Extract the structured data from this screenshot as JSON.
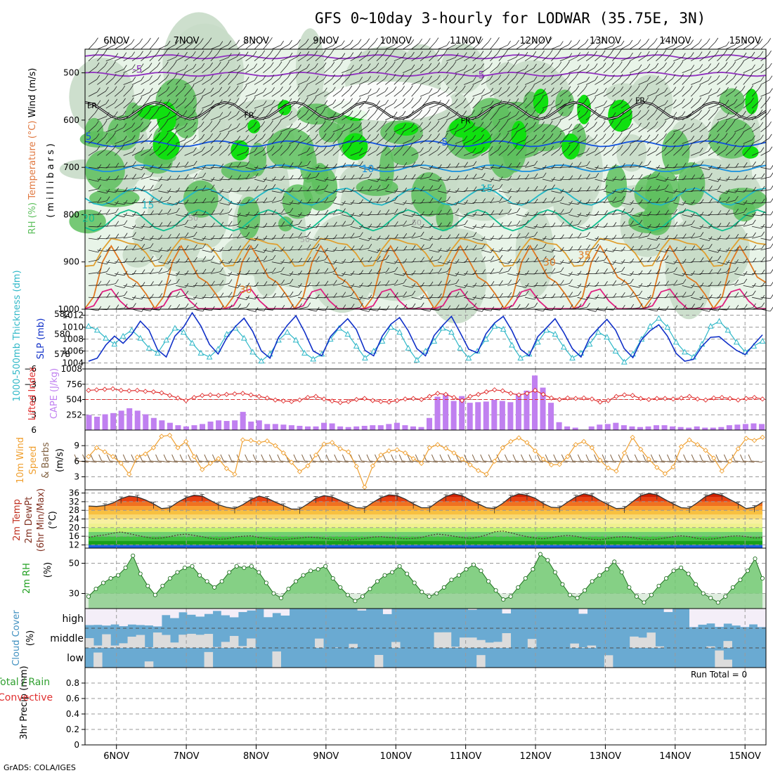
{
  "header": {
    "title": "GFS 0~10day 3-hourly for LODWAR (35.75E, 3N)",
    "credit": "GrADS: COLA/IGES"
  },
  "time_axis": {
    "labels": [
      "6NOV",
      "7NOV",
      "8NOV",
      "9NOV",
      "10NOV",
      "11NOV",
      "12NOV",
      "13NOV",
      "14NOV",
      "15NOV"
    ],
    "start_day": 5.55,
    "end_day": 15.3
  },
  "colors": {
    "rh_light": "#e8f4e8",
    "rh_mid": "#c8dcc8",
    "rh_dark": "#5ec05e",
    "rh_bright": "#10e010",
    "slp": "#1030c8",
    "thickness": "#30b8c8",
    "cape": "#c080f0",
    "lifted": "#e03030",
    "wind_speed": "#f0a030",
    "barb": "#806040",
    "rh2m": "#70c870",
    "cloud": "#6aaad2",
    "cloud_clear": "#dcdcdc"
  },
  "chart_data": [
    {
      "panel": "upper_air",
      "type": "heatmap",
      "ylabel_parts": [
        "RH (%)",
        "Temperature (°C)",
        "Wind (m/s)"
      ],
      "yunit": "(millibars)",
      "yticks": [
        500,
        600,
        700,
        800,
        900,
        1000
      ],
      "ylim": [
        1000,
        450
      ],
      "temperature_labels": [
        {
          "text": "-5",
          "day": 6.3,
          "p": 500
        },
        {
          "text": "-5",
          "day": 11.2,
          "p": 512
        },
        {
          "text": "FR",
          "day": 5.65,
          "p": 575
        },
        {
          "text": "FR",
          "day": 7.9,
          "p": 595
        },
        {
          "text": "FR",
          "day": 11.0,
          "p": 607
        },
        {
          "text": "FR",
          "day": 13.5,
          "p": 564
        },
        {
          "text": "5",
          "day": 5.6,
          "p": 642
        },
        {
          "text": "5",
          "day": 10.7,
          "p": 654
        },
        {
          "text": "10",
          "day": 9.6,
          "p": 710
        },
        {
          "text": "15",
          "day": 6.45,
          "p": 787
        },
        {
          "text": "15",
          "day": 11.3,
          "p": 752
        },
        {
          "text": "20",
          "day": 5.6,
          "p": 815
        },
        {
          "text": "30",
          "day": 12.2,
          "p": 908
        },
        {
          "text": "30",
          "day": 7.85,
          "p": 966
        },
        {
          "text": "35",
          "day": 12.7,
          "p": 893
        }
      ],
      "rh_labels": [
        {
          "text": "50",
          "day": 10.3,
          "p": 822
        },
        {
          "text": "50",
          "day": 8.7,
          "p": 858
        },
        {
          "text": "50",
          "day": 7.1,
          "p": 813
        }
      ],
      "isotherms": [
        {
          "temp": "-10",
          "color": "#9030c0",
          "p": 466,
          "amp": 4
        },
        {
          "temp": "-5",
          "color": "#9030c0",
          "p": 503,
          "amp": 4
        },
        {
          "temp": "0",
          "color": "#000000",
          "p": 580,
          "amp": 18
        },
        {
          "temp": "5",
          "color": "#1050e0",
          "p": 650,
          "amp": 6
        },
        {
          "temp": "10",
          "color": "#1890e0",
          "p": 702,
          "amp": 7
        },
        {
          "temp": "15",
          "color": "#20b8c8",
          "p": 762,
          "amp": 18
        },
        {
          "temp": "20",
          "color": "#10c090",
          "p": 812,
          "amp": 22
        },
        {
          "temp": "25",
          "color": "#e0a030",
          "p": 875,
          "amp": 28
        },
        {
          "temp": "30",
          "color": "#e07820",
          "p": 935,
          "amp": 55
        },
        {
          "temp": "35",
          "color": "#e02080",
          "p": 990,
          "amp": 25
        }
      ]
    },
    {
      "panel": "thickness_slp",
      "type": "line",
      "ylabel_left": "1000-500mb Thickness (dm)",
      "ylabel_right": "SLP (mb)",
      "yticks_left": [
        578,
        580,
        582
      ],
      "yticks_right": [
        1004,
        1006,
        1008,
        1010,
        1012
      ],
      "ylim_left": [
        576.5,
        582.5
      ],
      "ylim_right": [
        1003,
        1013
      ],
      "series": [
        {
          "name": "SLP",
          "values": [
            1004.3,
            1004.8,
            1007.0,
            1008.5,
            1007.3,
            1008.8,
            1011.0,
            1009.5,
            1006.2,
            1005.0,
            1008.5,
            1010.0,
            1012.4,
            1010.2,
            1007.1,
            1005.5,
            1008.2,
            1010.1,
            1011.5,
            1009.3,
            1006.0,
            1004.8,
            1008.3,
            1010.3,
            1011.9,
            1009.2,
            1006.0,
            1005.2,
            1008.4,
            1010.0,
            1011.4,
            1009.6,
            1006.1,
            1005.2,
            1008.5,
            1010.5,
            1011.6,
            1009.4,
            1006.4,
            1005.2,
            1008.6,
            1010.3,
            1011.8,
            1009.1,
            1006.3,
            1005.7,
            1008.9,
            1010.7,
            1011.8,
            1009.4,
            1006.3,
            1005.2,
            1008.4,
            1009.9,
            1011.4,
            1009.1,
            1006.4,
            1005.0,
            1008.2,
            1009.8,
            1011.3,
            1009.5,
            1006.4,
            1004.9,
            1007.9,
            1009.4,
            1010.4,
            1008.5,
            1005.6,
            1004.3,
            1004.6,
            1006.8,
            1008.3,
            1008.4,
            1007.2,
            1006.1,
            1005.4,
            1007.1,
            1008.7
          ]
        },
        {
          "name": "Thickness",
          "values": [
            580.8,
            580.4,
            579.6,
            579.0,
            579.8,
            580.4,
            579.6,
            578.6,
            578.1,
            579.4,
            580.6,
            580.2,
            579.1,
            578.1,
            577.7,
            578.5,
            580.0,
            580.6,
            579.6,
            578.2,
            577.3,
            578.0,
            579.4,
            580.2,
            579.4,
            578.1,
            577.5,
            578.0,
            579.5,
            580.6,
            580.0,
            578.8,
            577.6,
            578.3,
            579.3,
            580.7,
            580.2,
            578.6,
            577.4,
            578.3,
            579.3,
            580.6,
            580.2,
            578.6,
            577.6,
            578.3,
            579.5,
            580.8,
            580.5,
            578.9,
            577.6,
            578.0,
            579.2,
            580.4,
            580.0,
            578.7,
            577.6,
            578.1,
            579.0,
            580.2,
            579.7,
            578.3,
            577.2,
            578.0,
            579.5,
            580.8,
            581.6,
            580.7,
            579.2,
            578.2,
            577.7,
            579.0,
            580.8,
            581.3,
            580.4,
            579.2,
            578.2,
            578.8,
            579.3
          ]
        }
      ]
    },
    {
      "panel": "cape_li",
      "type": "bar",
      "ylabel_left": "Lifted Index",
      "ylabel_right": "CAPE (J/kg)",
      "yticks_left": [
        -6,
        -3,
        0,
        3,
        6
      ],
      "yticks_right": [
        252,
        504,
        756,
        1008
      ],
      "ylim_cape": [
        0,
        1008
      ],
      "series": [
        {
          "name": "CAPE",
          "values": [
            250,
            220,
            260,
            280,
            320,
            360,
            320,
            260,
            200,
            160,
            120,
            80,
            60,
            80,
            100,
            140,
            160,
            150,
            160,
            300,
            140,
            160,
            100,
            100,
            90,
            80,
            70,
            60,
            60,
            120,
            110,
            60,
            50,
            60,
            70,
            80,
            80,
            100,
            120,
            80,
            60,
            50,
            200,
            550,
            600,
            480,
            560,
            450,
            460,
            470,
            500,
            480,
            460,
            600,
            650,
            900,
            700,
            450,
            130,
            60,
            40,
            0,
            60,
            90,
            100,
            120,
            80,
            60,
            50,
            60,
            80,
            80,
            60,
            50,
            40,
            60,
            40,
            40,
            50,
            80,
            90,
            100,
            110,
            100
          ]
        },
        {
          "name": "Lifted Index",
          "values": [
            -1.8,
            -1.9,
            -2.0,
            -2.1,
            -1.8,
            -1.7,
            -1.8,
            -1.6,
            -1.5,
            -1.3,
            -0.8,
            -0.3,
            0.2,
            -0.4,
            -0.8,
            -0.9,
            -0.8,
            -1.0,
            -1.1,
            -1.2,
            -0.9,
            -0.6,
            -0.3,
            0.1,
            0.3,
            0.4,
            0.1,
            -0.4,
            -0.6,
            -0.1,
            0.3,
            0.6,
            0.4,
            0.0,
            -0.2,
            0.2,
            0.4,
            0.5,
            0.2,
            -0.1,
            -0.2,
            0.0,
            -0.6,
            -1.2,
            -1.0,
            -0.4,
            0.2,
            -0.6,
            -1.0,
            -1.5,
            -1.9,
            -1.7,
            -1.2,
            -0.9,
            -1.2,
            -1.8,
            -1.0,
            -0.3,
            0.0,
            -0.3,
            -0.2,
            -0.3,
            -0.1,
            0.5,
            0.2,
            -0.6,
            -0.9,
            -0.8,
            -0.2,
            0.0,
            -0.2,
            -0.2,
            -0.1,
            -0.3,
            -0.6,
            -0.1,
            0.1,
            -0.3,
            -0.4,
            -0.2,
            0.1,
            -0.2,
            -0.4,
            -0.1
          ]
        }
      ]
    },
    {
      "panel": "wind10m",
      "type": "line",
      "ylabel": "10m Wind Speed & Barbs (m/s)",
      "yticks": [
        3,
        6,
        9
      ],
      "ylim": [
        0.5,
        12
      ],
      "series": [
        {
          "name": "Wind Speed",
          "values": [
            6.9,
            8.6,
            7.8,
            6.9,
            5.6,
            3.5,
            6.8,
            7.4,
            8.6,
            10.8,
            11.0,
            8.6,
            9.8,
            6.9,
            4.4,
            5.6,
            6.5,
            4.6,
            3.5,
            10.1,
            10.0,
            9.6,
            9.9,
            9.0,
            7.6,
            5.8,
            4.0,
            5.1,
            7.2,
            9.3,
            9.6,
            8.4,
            7.8,
            5.0,
            1.0,
            5.1,
            7.2,
            8.0,
            8.2,
            7.6,
            6.5,
            5.6,
            8.6,
            9.2,
            8.5,
            7.6,
            6.4,
            5.3,
            4.2,
            3.5,
            6.0,
            8.6,
            9.8,
            10.5,
            9.6,
            8.0,
            6.4,
            5.3,
            5.4,
            6.9,
            9.2,
            9.8,
            8.6,
            6.2,
            4.7,
            4.1,
            7.6,
            10.6,
            8.3,
            6.4,
            4.8,
            3.6,
            4.9,
            8.8,
            10.1,
            9.2,
            8.1,
            6.6,
            4.1,
            6.0,
            8.4,
            10.4,
            10.0,
            10.6
          ]
        }
      ]
    },
    {
      "panel": "temp2m",
      "type": "area",
      "ylabel": "2m Temp 2m DewPt (6hr Min/Max) (°C)",
      "yticks": [
        12,
        16,
        20,
        24,
        28,
        32,
        36
      ],
      "ylim": [
        10.5,
        37.5
      ],
      "series": [
        {
          "name": "2m Temp",
          "values": [
            30.0,
            29.8,
            30.2,
            31.4,
            33.4,
            34.6,
            34.2,
            32.8,
            31.0,
            28.8,
            29.2,
            31.8,
            33.8,
            35.0,
            34.6,
            32.6,
            30.6,
            29.4,
            28.8,
            30.6,
            33.0,
            34.6,
            33.6,
            31.8,
            30.2,
            28.6,
            28.6,
            31.0,
            33.6,
            34.8,
            34.2,
            32.6,
            30.8,
            29.2,
            29.0,
            31.6,
            33.8,
            35.2,
            34.8,
            33.2,
            31.0,
            29.2,
            29.2,
            32.0,
            34.4,
            35.6,
            34.8,
            32.8,
            31.0,
            29.2,
            28.8,
            31.2,
            34.2,
            35.6,
            35.0,
            33.6,
            31.2,
            29.4,
            29.2,
            31.8,
            34.2,
            35.6,
            34.8,
            32.6,
            30.6,
            28.8,
            29.0,
            32.0,
            34.8,
            35.8,
            35.2,
            33.0,
            31.0,
            29.2,
            29.0,
            31.6,
            34.4,
            35.8,
            35.0,
            33.0,
            31.0,
            28.8,
            29.4,
            31.8
          ]
        },
        {
          "name": "2m DewPt",
          "values": [
            15.4,
            16.2,
            16.6,
            17.4,
            18.0,
            17.2,
            16.4,
            15.6,
            15.0,
            15.2,
            15.8,
            16.6,
            17.0,
            16.4,
            15.8,
            15.0,
            14.6,
            14.8,
            15.6,
            16.0,
            16.2,
            15.4,
            15.0,
            14.6,
            14.4,
            14.8,
            15.2,
            15.6,
            15.4,
            15.0,
            14.6,
            14.4,
            14.2,
            14.6,
            15.0,
            15.6,
            15.8,
            15.4,
            15.2,
            14.8,
            15.0,
            15.4,
            16.4,
            17.0,
            16.6,
            16.0,
            15.4,
            15.0,
            15.6,
            16.6,
            18.0,
            18.4,
            17.6,
            16.6,
            15.8,
            15.2,
            14.8,
            15.4,
            16.0,
            16.4,
            16.0,
            15.2,
            14.6,
            14.4,
            15.0,
            15.6,
            15.8,
            15.4,
            14.8,
            14.4,
            14.6,
            15.2,
            15.8,
            16.2,
            15.8,
            15.0,
            14.6,
            14.8,
            15.4,
            16.0,
            16.2,
            15.8,
            15.2,
            15.4
          ]
        }
      ]
    },
    {
      "panel": "rh2m",
      "type": "area",
      "ylabel": "2m RH (%)",
      "yticks": [
        30,
        50
      ],
      "ylim": [
        20,
        60
      ],
      "series": [
        {
          "name": "2m RH",
          "values": [
            28,
            33,
            37,
            40,
            42,
            47,
            55,
            43,
            35,
            29,
            35,
            40,
            44,
            47,
            48,
            42,
            38,
            34,
            38,
            44,
            48,
            47,
            48,
            44,
            37,
            30,
            27,
            33,
            38,
            42,
            45,
            46,
            48,
            40,
            34,
            29,
            25,
            28,
            33,
            38,
            42,
            44,
            48,
            43,
            37,
            31,
            28,
            30,
            34,
            39,
            42,
            46,
            49,
            45,
            38,
            32,
            26,
            28,
            34,
            40,
            46,
            56,
            52,
            44,
            36,
            29,
            27,
            32,
            38,
            42,
            46,
            51,
            44,
            34,
            28,
            24,
            29,
            35,
            40,
            45,
            47,
            43,
            36,
            30,
            27,
            24,
            28,
            34,
            39,
            45,
            53,
            40
          ]
        }
      ]
    },
    {
      "panel": "cloud",
      "type": "heatmap",
      "ylabel": "Cloud Cover (%)",
      "levels": [
        "high",
        "middle",
        "low"
      ]
    },
    {
      "panel": "precip",
      "type": "bar",
      "ylabel_parts": [
        "Total / Rain",
        "Convective",
        "3hr Precip (mm)"
      ],
      "yticks": [
        "0",
        "0.2",
        "0.4",
        "0.6",
        "0.8"
      ],
      "ylim": [
        0,
        1
      ],
      "run_total": "Run Total = 0",
      "values": []
    }
  ]
}
